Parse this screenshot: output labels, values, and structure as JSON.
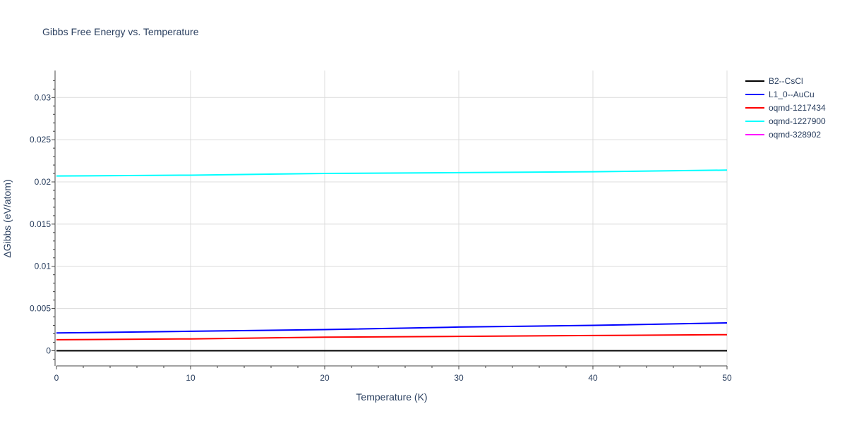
{
  "chart_data": {
    "type": "line",
    "title": "Gibbs Free Energy vs. Temperature",
    "xlabel": "Temperature (K)",
    "ylabel": "ΔGibbs (eV/atom)",
    "xlim": [
      0,
      50
    ],
    "ylim": [
      -0.0018,
      0.0332
    ],
    "x_ticks": [
      0,
      10,
      20,
      30,
      40,
      50
    ],
    "x_tick_labels": [
      "0",
      "10",
      "20",
      "30",
      "40",
      "50"
    ],
    "y_ticks": [
      0,
      0.005,
      0.01,
      0.015,
      0.02,
      0.025,
      0.03
    ],
    "y_tick_labels": [
      "0",
      "0.005",
      "0.01",
      "0.015",
      "0.02",
      "0.025",
      "0.03"
    ],
    "grid": true,
    "legend_position": "top-right",
    "x": [
      0,
      10,
      20,
      30,
      40,
      50
    ],
    "series": [
      {
        "name": "B2--CsCl",
        "color": "#000000",
        "values": [
          0,
          0,
          0,
          0,
          0,
          0
        ]
      },
      {
        "name": "L1_0--AuCu",
        "color": "#0000ff",
        "values": [
          0.0021,
          0.0023,
          0.0025,
          0.0028,
          0.003,
          0.0033
        ]
      },
      {
        "name": "oqmd-1217434",
        "color": "#ff0000",
        "values": [
          0.0013,
          0.0014,
          0.0016,
          0.0017,
          0.0018,
          0.0019
        ]
      },
      {
        "name": "oqmd-1227900",
        "color": "#00ffff",
        "values": [
          0.0207,
          0.0208,
          0.021,
          0.0211,
          0.0212,
          0.0214
        ]
      },
      {
        "name": "oqmd-328902",
        "color": "#ff00ff",
        "values": null
      }
    ]
  }
}
